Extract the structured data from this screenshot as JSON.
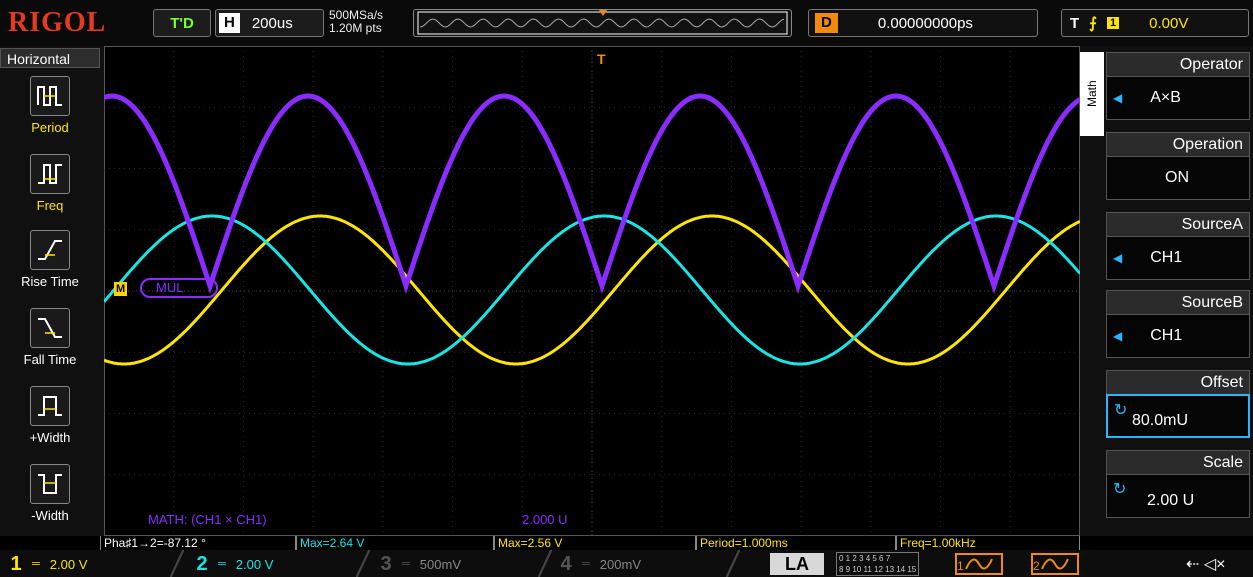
{
  "header": {
    "brand": "RIGOL",
    "run_status": "T'D",
    "horizontal_key": "H",
    "timebase": "200us",
    "sample_rate": "500MSa/s",
    "memory_depth": "1.20M pts",
    "delay_key": "D",
    "delay_value": "0.00000000ps",
    "trigger_key": "T",
    "trigger_edge": "rising-edge-icon",
    "trigger_source": "1",
    "trigger_level": "0.00V"
  },
  "left_menu": {
    "title": "Horizontal",
    "items": [
      {
        "label": "Period",
        "icon": "period-icon"
      },
      {
        "label": "Freq",
        "icon": "frequency-icon"
      },
      {
        "label": "Rise Time",
        "icon": "rise-time-icon"
      },
      {
        "label": "Fall Time",
        "icon": "fall-time-icon"
      },
      {
        "label": "+Width",
        "icon": "positive-width-icon"
      },
      {
        "label": "-Width",
        "icon": "negative-width-icon"
      }
    ]
  },
  "right_menu": {
    "tab": "Math",
    "items": [
      {
        "label": "Operator",
        "value": "A×B"
      },
      {
        "label": "Operation",
        "value": "ON"
      },
      {
        "label": "SourceA",
        "value": "CH1"
      },
      {
        "label": "SourceB",
        "value": "CH1"
      },
      {
        "label": "Offset",
        "value": "80.0mU"
      },
      {
        "label": "Scale",
        "value": "2.00 U"
      }
    ]
  },
  "screen": {
    "math_label": "MUL",
    "math_marker": "M",
    "trigger_marker": "T",
    "math_info": "MATH: (CH1 × CH1)",
    "math_scale": "2.000 U"
  },
  "measurements": [
    {
      "text": "Pha♯1→2=-87.12 °",
      "color": "white"
    },
    {
      "text": "Max=2.64 V",
      "color": "cyan"
    },
    {
      "text": "Max=2.56 V",
      "color": "yellow"
    },
    {
      "text": "Period=1.000ms",
      "color": "yellow"
    },
    {
      "text": "Freq=1.00kHz",
      "color": "yellow"
    }
  ],
  "channels": [
    {
      "num": "1",
      "coupling": "═",
      "scale": "2.00 V",
      "color": "#ffe600",
      "active": true
    },
    {
      "num": "2",
      "coupling": "═",
      "scale": "2.00 V",
      "color": "#18e6e6",
      "active": true
    },
    {
      "num": "3",
      "coupling": "═",
      "scale": "500mV",
      "color": "#555555",
      "active": false
    },
    {
      "num": "4",
      "coupling": "═",
      "scale": "200mV",
      "color": "#555555",
      "active": false
    }
  ],
  "la": {
    "label": "LA",
    "digits_top": "0 1 2 3   4 5 6 7",
    "digits_bottom": "8 9 10 11   12 13 14 15"
  },
  "math_buttons": [
    {
      "num": "1"
    },
    {
      "num": "2"
    }
  ],
  "status_icons": [
    "usb-icon",
    "speaker-mute-icon"
  ],
  "colors": {
    "ch1": "#ffe600",
    "ch2": "#18e6e6",
    "math": "#8a2cff",
    "trigger": "#f08a10"
  }
}
